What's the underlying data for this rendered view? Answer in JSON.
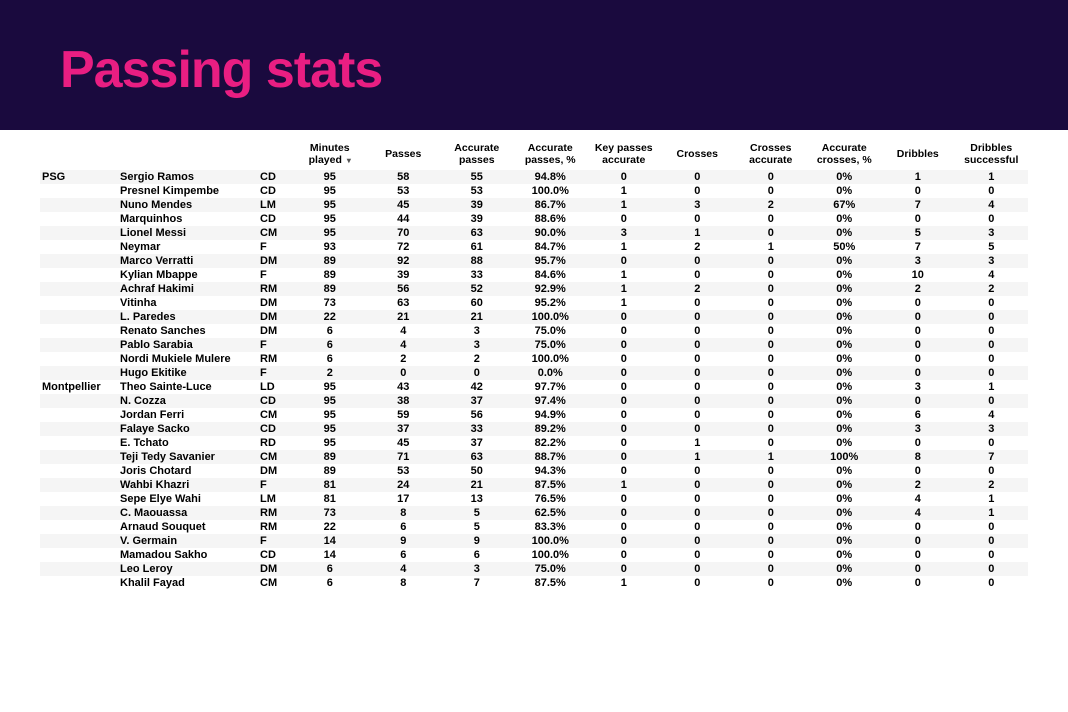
{
  "header": {
    "title": "Passing stats"
  },
  "colors": {
    "header_bg": "#1a0a3e",
    "title_color": "#e91e82",
    "row_alt_bg": "#f5f5f5",
    "row_bg": "#ffffff",
    "text": "#000000"
  },
  "table": {
    "columns": [
      "Minutes played",
      "Passes",
      "Accurate passes",
      "Accurate passes, %",
      "Key passes accurate",
      "Crosses",
      "Crosses accurate",
      "Accurate crosses, %",
      "Dribbles",
      "Dribbles successful"
    ],
    "sorted_column_index": 0,
    "groups": [
      {
        "team": "PSG",
        "rows": [
          {
            "player": "Sergio Ramos",
            "pos": "CD",
            "vals": [
              "95",
              "58",
              "55",
              "94.8%",
              "0",
              "0",
              "0",
              "0%",
              "1",
              "1"
            ]
          },
          {
            "player": "Presnel Kimpembe",
            "pos": "CD",
            "vals": [
              "95",
              "53",
              "53",
              "100.0%",
              "1",
              "0",
              "0",
              "0%",
              "0",
              "0"
            ]
          },
          {
            "player": "Nuno Mendes",
            "pos": "LM",
            "vals": [
              "95",
              "45",
              "39",
              "86.7%",
              "1",
              "3",
              "2",
              "67%",
              "7",
              "4"
            ]
          },
          {
            "player": "Marquinhos",
            "pos": "CD",
            "vals": [
              "95",
              "44",
              "39",
              "88.6%",
              "0",
              "0",
              "0",
              "0%",
              "0",
              "0"
            ]
          },
          {
            "player": "Lionel Messi",
            "pos": "CM",
            "vals": [
              "95",
              "70",
              "63",
              "90.0%",
              "3",
              "1",
              "0",
              "0%",
              "5",
              "3"
            ]
          },
          {
            "player": "Neymar",
            "pos": "F",
            "vals": [
              "93",
              "72",
              "61",
              "84.7%",
              "1",
              "2",
              "1",
              "50%",
              "7",
              "5"
            ]
          },
          {
            "player": "Marco Verratti",
            "pos": "DM",
            "vals": [
              "89",
              "92",
              "88",
              "95.7%",
              "0",
              "0",
              "0",
              "0%",
              "3",
              "3"
            ]
          },
          {
            "player": "Kylian Mbappe",
            "pos": "F",
            "vals": [
              "89",
              "39",
              "33",
              "84.6%",
              "1",
              "0",
              "0",
              "0%",
              "10",
              "4"
            ]
          },
          {
            "player": "Achraf Hakimi",
            "pos": "RM",
            "vals": [
              "89",
              "56",
              "52",
              "92.9%",
              "1",
              "2",
              "0",
              "0%",
              "2",
              "2"
            ]
          },
          {
            "player": "Vitinha",
            "pos": "DM",
            "vals": [
              "73",
              "63",
              "60",
              "95.2%",
              "1",
              "0",
              "0",
              "0%",
              "0",
              "0"
            ]
          },
          {
            "player": "L. Paredes",
            "pos": "DM",
            "vals": [
              "22",
              "21",
              "21",
              "100.0%",
              "0",
              "0",
              "0",
              "0%",
              "0",
              "0"
            ]
          },
          {
            "player": "Renato Sanches",
            "pos": "DM",
            "vals": [
              "6",
              "4",
              "3",
              "75.0%",
              "0",
              "0",
              "0",
              "0%",
              "0",
              "0"
            ]
          },
          {
            "player": "Pablo Sarabia",
            "pos": "F",
            "vals": [
              "6",
              "4",
              "3",
              "75.0%",
              "0",
              "0",
              "0",
              "0%",
              "0",
              "0"
            ]
          },
          {
            "player": "Nordi Mukiele Mulere",
            "pos": "RM",
            "vals": [
              "6",
              "2",
              "2",
              "100.0%",
              "0",
              "0",
              "0",
              "0%",
              "0",
              "0"
            ]
          },
          {
            "player": "Hugo Ekitike",
            "pos": "F",
            "vals": [
              "2",
              "0",
              "0",
              "0.0%",
              "0",
              "0",
              "0",
              "0%",
              "0",
              "0"
            ]
          }
        ]
      },
      {
        "team": "Montpellier",
        "rows": [
          {
            "player": "Theo Sainte-Luce",
            "pos": "LD",
            "vals": [
              "95",
              "43",
              "42",
              "97.7%",
              "0",
              "0",
              "0",
              "0%",
              "3",
              "1"
            ]
          },
          {
            "player": "N. Cozza",
            "pos": "CD",
            "vals": [
              "95",
              "38",
              "37",
              "97.4%",
              "0",
              "0",
              "0",
              "0%",
              "0",
              "0"
            ]
          },
          {
            "player": "Jordan Ferri",
            "pos": "CM",
            "vals": [
              "95",
              "59",
              "56",
              "94.9%",
              "0",
              "0",
              "0",
              "0%",
              "6",
              "4"
            ]
          },
          {
            "player": "Falaye Sacko",
            "pos": "CD",
            "vals": [
              "95",
              "37",
              "33",
              "89.2%",
              "0",
              "0",
              "0",
              "0%",
              "3",
              "3"
            ]
          },
          {
            "player": "E. Tchato",
            "pos": "RD",
            "vals": [
              "95",
              "45",
              "37",
              "82.2%",
              "0",
              "1",
              "0",
              "0%",
              "0",
              "0"
            ]
          },
          {
            "player": "Teji Tedy Savanier",
            "pos": "CM",
            "vals": [
              "89",
              "71",
              "63",
              "88.7%",
              "0",
              "1",
              "1",
              "100%",
              "8",
              "7"
            ]
          },
          {
            "player": "Joris Chotard",
            "pos": "DM",
            "vals": [
              "89",
              "53",
              "50",
              "94.3%",
              "0",
              "0",
              "0",
              "0%",
              "0",
              "0"
            ]
          },
          {
            "player": "Wahbi Khazri",
            "pos": "F",
            "vals": [
              "81",
              "24",
              "21",
              "87.5%",
              "1",
              "0",
              "0",
              "0%",
              "2",
              "2"
            ]
          },
          {
            "player": "Sepe Elye Wahi",
            "pos": "LM",
            "vals": [
              "81",
              "17",
              "13",
              "76.5%",
              "0",
              "0",
              "0",
              "0%",
              "4",
              "1"
            ]
          },
          {
            "player": "C. Maouassa",
            "pos": "RM",
            "vals": [
              "73",
              "8",
              "5",
              "62.5%",
              "0",
              "0",
              "0",
              "0%",
              "4",
              "1"
            ]
          },
          {
            "player": "Arnaud Souquet",
            "pos": "RM",
            "vals": [
              "22",
              "6",
              "5",
              "83.3%",
              "0",
              "0",
              "0",
              "0%",
              "0",
              "0"
            ]
          },
          {
            "player": "V. Germain",
            "pos": "F",
            "vals": [
              "14",
              "9",
              "9",
              "100.0%",
              "0",
              "0",
              "0",
              "0%",
              "0",
              "0"
            ]
          },
          {
            "player": "Mamadou Sakho",
            "pos": "CD",
            "vals": [
              "14",
              "6",
              "6",
              "100.0%",
              "0",
              "0",
              "0",
              "0%",
              "0",
              "0"
            ]
          },
          {
            "player": "Leo Leroy",
            "pos": "DM",
            "vals": [
              "6",
              "4",
              "3",
              "75.0%",
              "0",
              "0",
              "0",
              "0%",
              "0",
              "0"
            ]
          },
          {
            "player": "Khalil Fayad",
            "pos": "CM",
            "vals": [
              "6",
              "8",
              "7",
              "87.5%",
              "1",
              "0",
              "0",
              "0%",
              "0",
              "0"
            ]
          }
        ]
      }
    ]
  }
}
